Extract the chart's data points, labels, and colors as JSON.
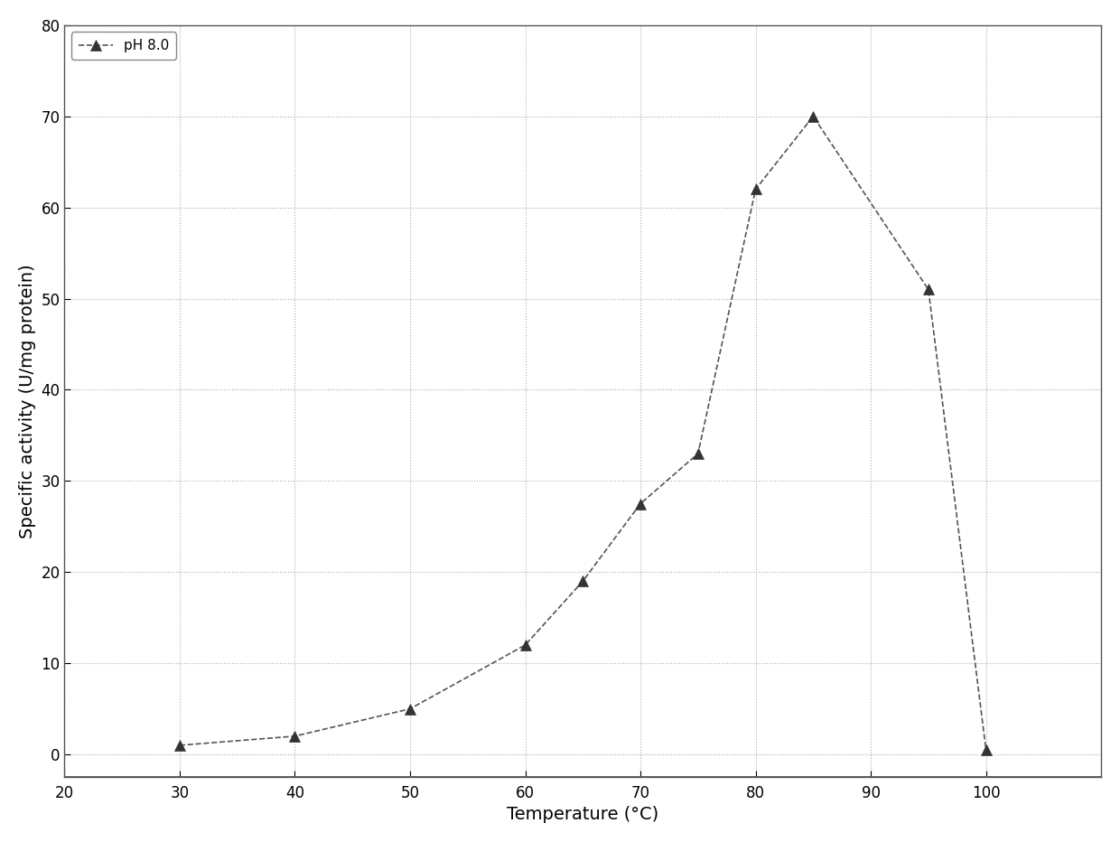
{
  "x": [
    30,
    40,
    50,
    60,
    65,
    70,
    75,
    80,
    85,
    95,
    100
  ],
  "y": [
    1.0,
    2.0,
    5.0,
    12.0,
    19.0,
    27.5,
    33.0,
    62.0,
    70.0,
    51.0,
    0.5
  ],
  "line_color": "#555555",
  "marker": "^",
  "marker_color": "#333333",
  "marker_size": 9,
  "legend_label": "pH 8.0",
  "xlabel": "Temperature (°C)",
  "ylabel": "Specific activity (U/mg protein)",
  "xlim": [
    20,
    110
  ],
  "ylim": [
    -2.5,
    80
  ],
  "xticks": [
    20,
    30,
    40,
    50,
    60,
    70,
    80,
    90,
    100
  ],
  "yticks": [
    0,
    10,
    20,
    30,
    40,
    50,
    60,
    70,
    80
  ],
  "background_color": "#ffffff",
  "grid_color": "#aaaaaa",
  "label_fontsize": 14,
  "tick_fontsize": 12,
  "legend_fontsize": 11
}
